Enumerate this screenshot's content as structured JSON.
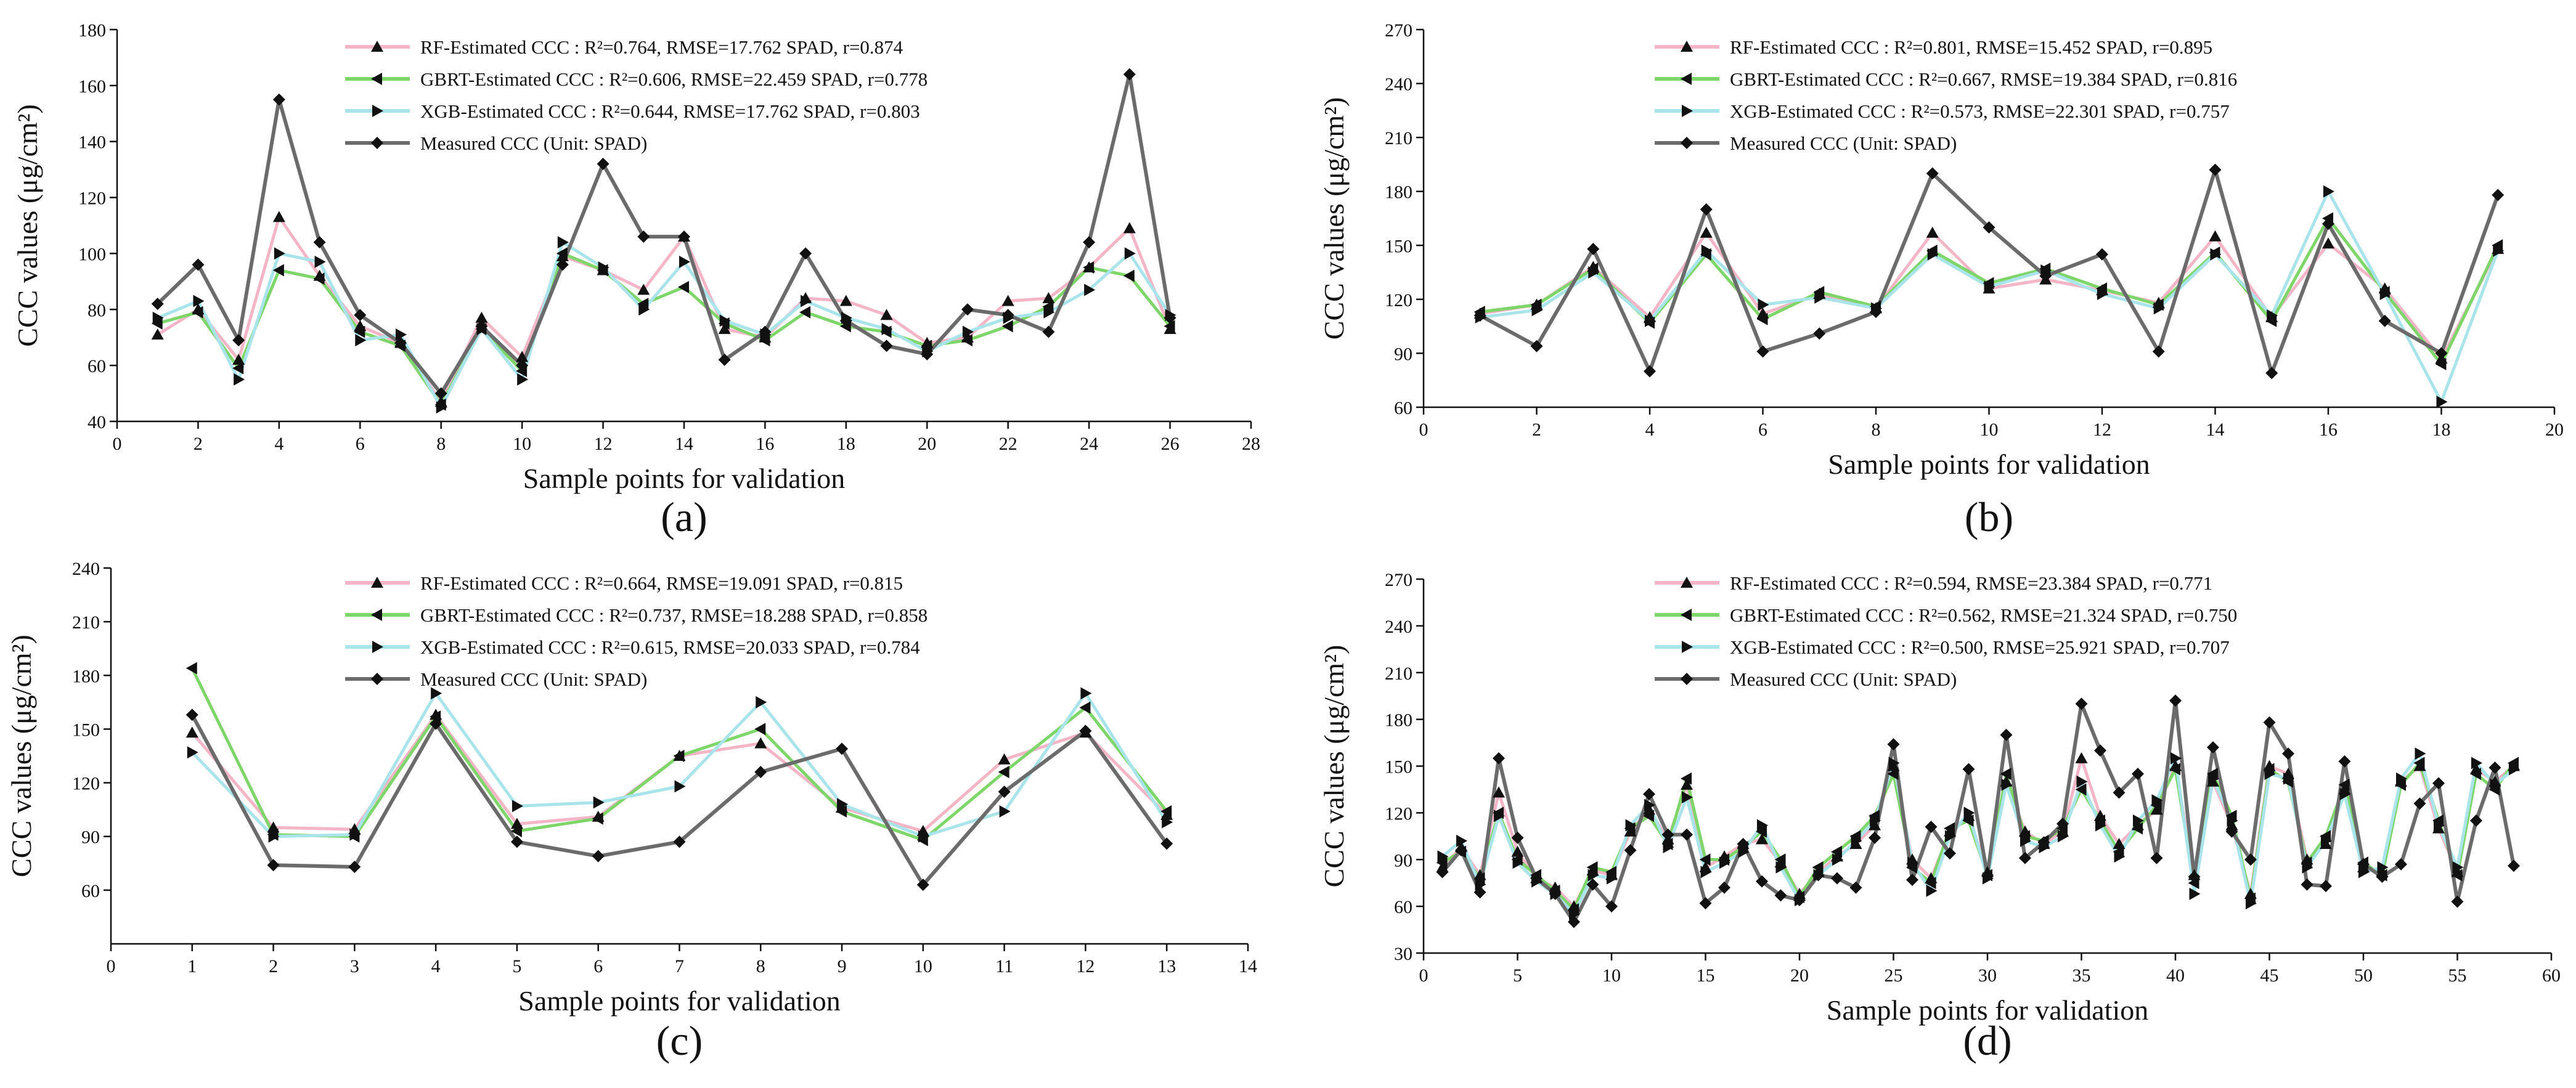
{
  "figure": {
    "colors": {
      "rf": "#f4b6c6",
      "gbrt": "#7ed66a",
      "xgb": "#a8e4ea",
      "measured": "#6b6b6b",
      "axis": "#111111"
    }
  },
  "chart_data": [
    {
      "panel_label": "(a)",
      "type": "line",
      "xlabel": "Sample points for validation",
      "ylabel": "CCC values (μg/cm²)",
      "xlim": [
        0,
        28
      ],
      "ylim": [
        40,
        180
      ],
      "xticks": [
        0,
        2,
        4,
        6,
        8,
        10,
        12,
        14,
        16,
        18,
        20,
        22,
        24,
        26,
        28
      ],
      "yticks": [
        40,
        60,
        80,
        100,
        120,
        140,
        160,
        180
      ],
      "legend_position": "top-center",
      "x": [
        1,
        2,
        3,
        4,
        5,
        6,
        7,
        8,
        9,
        10,
        11,
        12,
        13,
        14,
        15,
        16,
        17,
        18,
        19,
        20,
        21,
        22,
        23,
        24,
        25,
        26
      ],
      "series": [
        {
          "key": "rf",
          "marker": "triangle-up",
          "legend": "RF-Estimated CCC : R²=0.764,  RMSE=17.762 SPAD, r=0.874",
          "values": [
            71,
            80,
            62,
            113,
            92,
            74,
            68,
            47,
            77,
            63,
            99,
            94,
            87,
            106,
            73,
            70,
            84,
            83,
            78,
            68,
            70,
            83,
            84,
            95,
            109,
            73
          ]
        },
        {
          "key": "gbrt",
          "marker": "triangle-left",
          "legend": "GBRT-Estimated CCC : R²=0.606,  RMSE=22.459 SPAD, r=0.778",
          "values": [
            75,
            79,
            59,
            94,
            91,
            72,
            67,
            46,
            73,
            58,
            100,
            94,
            82,
            88,
            75,
            69,
            79,
            74,
            72,
            67,
            69,
            74,
            81,
            95,
            92,
            74
          ]
        },
        {
          "key": "xgb",
          "marker": "triangle-right",
          "legend": "XGB-Estimated CCC : R²=0.644,  RMSE=17.762 SPAD, r=0.803",
          "values": [
            77,
            83,
            55,
            100,
            97,
            69,
            71,
            45,
            73,
            55,
            104,
            95,
            80,
            97,
            76,
            71,
            83,
            77,
            73,
            65,
            72,
            77,
            79,
            87,
            100,
            78
          ]
        },
        {
          "key": "measured",
          "marker": "diamond",
          "legend": "Measured CCC (Unit: SPAD)",
          "values": [
            82,
            96,
            69,
            155,
            104,
            78,
            68,
            50,
            74,
            60,
            96,
            132,
            106,
            106,
            62,
            72,
            100,
            76,
            67,
            64,
            80,
            78,
            72,
            104,
            164,
            77
          ]
        }
      ]
    },
    {
      "panel_label": "(b)",
      "type": "line",
      "xlabel": "Sample points for validation",
      "ylabel": "CCC values (μg/cm²)",
      "xlim": [
        0,
        20
      ],
      "ylim": [
        60,
        270
      ],
      "xticks": [
        0,
        2,
        4,
        6,
        8,
        10,
        12,
        14,
        16,
        18,
        20
      ],
      "yticks": [
        60,
        90,
        120,
        150,
        180,
        210,
        240,
        270
      ],
      "legend_position": "top-center",
      "x": [
        1,
        2,
        3,
        4,
        5,
        6,
        7,
        8,
        9,
        10,
        11,
        12,
        13,
        14,
        15,
        16,
        17,
        18,
        19
      ],
      "series": [
        {
          "key": "rf",
          "marker": "triangle-up",
          "legend": "RF-Estimated CCC : R²=0.801,  RMSE=15.452 SPAD, r=0.895",
          "values": [
            112,
            117,
            138,
            110,
            157,
            112,
            123,
            115,
            157,
            126,
            131,
            125,
            118,
            155,
            110,
            151,
            126,
            87,
            148
          ]
        },
        {
          "key": "gbrt",
          "marker": "triangle-left",
          "legend": "GBRT-Estimated CCC : R²=0.667,  RMSE=19.384 SPAD, r=0.816",
          "values": [
            113,
            117,
            137,
            107,
            145,
            109,
            124,
            116,
            147,
            129,
            137,
            126,
            117,
            146,
            108,
            165,
            124,
            84,
            150
          ]
        },
        {
          "key": "xgb",
          "marker": "triangle-right",
          "legend": "XGB-Estimated CCC : R²=0.573,  RMSE=22.301 SPAD, r=0.757",
          "values": [
            110,
            114,
            135,
            108,
            147,
            117,
            121,
            115,
            145,
            127,
            136,
            123,
            115,
            145,
            111,
            180,
            123,
            63,
            147
          ]
        },
        {
          "key": "measured",
          "marker": "diamond",
          "legend": "Measured CCC (Unit: SPAD)",
          "values": [
            111,
            94,
            148,
            80,
            170,
            91,
            101,
            113,
            190,
            160,
            133,
            145,
            91,
            192,
            79,
            162,
            108,
            90,
            178
          ]
        }
      ]
    },
    {
      "panel_label": "(c)",
      "type": "line",
      "xlabel": "Sample points for validation",
      "ylabel": "CCC values (μg/cm²)",
      "xlim": [
        0,
        14
      ],
      "ylim": [
        30,
        240
      ],
      "xticks": [
        0,
        1,
        2,
        3,
        4,
        5,
        6,
        7,
        8,
        9,
        10,
        11,
        12,
        13,
        14
      ],
      "yticks": [
        60,
        90,
        120,
        150,
        180,
        210,
        240
      ],
      "legend_position": "top-center",
      "x": [
        1,
        2,
        3,
        4,
        5,
        6,
        7,
        8,
        9,
        10,
        11,
        12,
        13
      ],
      "series": [
        {
          "key": "rf",
          "marker": "triangle-up",
          "legend": "RF-Estimated CCC : R²=0.664,  RMSE=19.091 SPAD, r=0.815",
          "values": [
            148,
            95,
            94,
            158,
            97,
            101,
            135,
            142,
            106,
            93,
            133,
            148,
            102
          ]
        },
        {
          "key": "gbrt",
          "marker": "triangle-left",
          "legend": "GBRT-Estimated CCC : R²=0.737,  RMSE=18.288 SPAD, r=0.858",
          "values": [
            184,
            91,
            90,
            157,
            93,
            100,
            135,
            150,
            104,
            88,
            126,
            162,
            104
          ]
        },
        {
          "key": "xgb",
          "marker": "triangle-right",
          "legend": "XGB-Estimated CCC : R²=0.615,  RMSE=20.033 SPAD, r=0.784",
          "values": [
            137,
            90,
            91,
            170,
            107,
            109,
            118,
            165,
            108,
            90,
            104,
            170,
            98
          ]
        },
        {
          "key": "measured",
          "marker": "diamond",
          "legend": "Measured CCC (Unit: SPAD)",
          "values": [
            158,
            74,
            73,
            153,
            87,
            79,
            87,
            126,
            139,
            63,
            115,
            149,
            86
          ]
        }
      ]
    },
    {
      "panel_label": "(d)",
      "type": "line",
      "xlabel": "Sample points for validation",
      "ylabel": "CCC values (μg/cm²)",
      "xlim": [
        0,
        60
      ],
      "ylim": [
        30,
        270
      ],
      "xticks": [
        0,
        5,
        10,
        15,
        20,
        25,
        30,
        35,
        40,
        45,
        50,
        55,
        60
      ],
      "yticks": [
        30,
        60,
        90,
        120,
        150,
        180,
        210,
        240,
        270
      ],
      "legend_position": "top-center",
      "x": [
        1,
        2,
        3,
        4,
        5,
        6,
        7,
        8,
        9,
        10,
        11,
        12,
        13,
        14,
        15,
        16,
        17,
        18,
        19,
        20,
        21,
        22,
        23,
        24,
        25,
        26,
        27,
        28,
        29,
        30,
        31,
        32,
        33,
        34,
        35,
        36,
        37,
        38,
        39,
        40,
        41,
        42,
        43,
        44,
        45,
        46,
        47,
        48,
        49,
        50,
        51,
        52,
        53,
        54,
        55,
        56,
        57,
        58
      ],
      "series": [
        {
          "key": "rf",
          "marker": "triangle-up",
          "legend": "RF-Estimated CCC : R²=0.594,  RMSE=23.384 SPAD, r=0.771",
          "values": [
            85,
            98,
            80,
            133,
            95,
            78,
            72,
            60,
            83,
            80,
            108,
            122,
            103,
            138,
            85,
            92,
            100,
            103,
            88,
            68,
            82,
            92,
            100,
            112,
            150,
            90,
            78,
            108,
            118,
            82,
            140,
            108,
            100,
            108,
            155,
            118,
            100,
            112,
            122,
            150,
            80,
            140,
            112,
            68,
            150,
            145,
            90,
            100,
            135,
            85,
            82,
            140,
            150,
            110,
            82,
            148,
            140,
            150
          ]
        },
        {
          "key": "gbrt",
          "marker": "triangle-left",
          "legend": "GBRT-Estimated CCC : R²=0.562,  RMSE=21.324 SPAD, r=0.750",
          "values": [
            88,
            95,
            78,
            120,
            90,
            80,
            70,
            58,
            85,
            82,
            110,
            118,
            100,
            142,
            90,
            90,
            98,
            108,
            90,
            66,
            85,
            95,
            105,
            118,
            145,
            85,
            75,
            110,
            115,
            80,
            145,
            105,
            102,
            110,
            135,
            115,
            95,
            110,
            125,
            148,
            75,
            145,
            118,
            65,
            148,
            140,
            88,
            105,
            138,
            88,
            80,
            138,
            152,
            115,
            80,
            145,
            135,
            152
          ]
        },
        {
          "key": "xgb",
          "marker": "triangle-right",
          "legend": "XGB-Estimated CCC : R²=0.500,  RMSE=25.921 SPAD, r=0.707",
          "values": [
            92,
            102,
            74,
            118,
            88,
            76,
            68,
            55,
            80,
            78,
            112,
            125,
            98,
            130,
            82,
            88,
            95,
            112,
            85,
            64,
            80,
            90,
            102,
            115,
            152,
            88,
            70,
            105,
            120,
            78,
            138,
            102,
            98,
            105,
            140,
            112,
            92,
            115,
            128,
            155,
            68,
            142,
            115,
            62,
            145,
            142,
            85,
            102,
            132,
            82,
            85,
            142,
            158,
            112,
            85,
            152,
            138,
            148
          ]
        },
        {
          "key": "measured",
          "marker": "diamond",
          "legend": "Measured CCC (Unit: SPAD)",
          "values": [
            82,
            96,
            69,
            155,
            104,
            78,
            68,
            50,
            74,
            60,
            96,
            132,
            106,
            106,
            62,
            72,
            100,
            76,
            67,
            64,
            80,
            78,
            72,
            104,
            164,
            77,
            111,
            94,
            148,
            80,
            170,
            91,
            101,
            113,
            190,
            160,
            133,
            145,
            91,
            192,
            79,
            162,
            108,
            90,
            178,
            158,
            74,
            73,
            153,
            87,
            79,
            87,
            126,
            139,
            63,
            115,
            149,
            86
          ]
        }
      ]
    }
  ]
}
